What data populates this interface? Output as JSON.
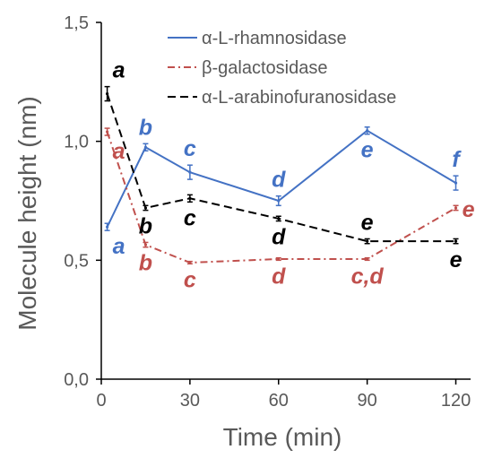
{
  "chart_data": {
    "type": "line",
    "xlabel": "Time (min)",
    "ylabel": "Molecule height (nm)",
    "xlim": [
      0,
      125
    ],
    "ylim": [
      0,
      1.5
    ],
    "xticks": [
      0,
      30,
      60,
      90,
      120
    ],
    "xtick_labels": [
      "0",
      "30",
      "60",
      "90",
      "120"
    ],
    "yticks": [
      0,
      0.5,
      1.0,
      1.5
    ],
    "ytick_labels": [
      "0,0",
      "0,5",
      "1,0",
      "1,5"
    ],
    "grid": false,
    "legend_position": "top-right",
    "series": [
      {
        "name": "α-L-rhamnosidase",
        "color": "#4472C4",
        "dash": "solid",
        "x": [
          2,
          15,
          30,
          60,
          90,
          120
        ],
        "y": [
          0.64,
          0.975,
          0.87,
          0.75,
          1.045,
          0.825
        ],
        "err": [
          0.015,
          0.015,
          0.03,
          0.02,
          0.015,
          0.03
        ],
        "letters": [
          "a",
          "b",
          "c",
          "d",
          "e",
          "f"
        ],
        "letter_side": [
          "below",
          "above",
          "above",
          "above",
          "below",
          "above"
        ]
      },
      {
        "name": "β-galactosidase",
        "color": "#C0504D",
        "dash": "dashdot",
        "x": [
          2,
          15,
          30,
          60,
          90,
          120
        ],
        "y": [
          1.04,
          0.565,
          0.49,
          0.505,
          0.505,
          0.72
        ],
        "err": [
          0.015,
          0.01,
          0.005,
          0.005,
          0.005,
          0.01
        ],
        "letters": [
          "a",
          "b",
          "c",
          "d",
          "c,d",
          "e"
        ],
        "letter_side": [
          "below",
          "below",
          "below",
          "below",
          "below",
          "right"
        ]
      },
      {
        "name": "α-L-arabinofuranosidase",
        "color": "#000000",
        "dash": "dashed",
        "x": [
          2,
          15,
          30,
          60,
          90,
          120
        ],
        "y": [
          1.2,
          0.72,
          0.76,
          0.675,
          0.58,
          0.58
        ],
        "err": [
          0.03,
          0.01,
          0.015,
          0.01,
          0.01,
          0.01
        ],
        "letters": [
          "a",
          "b",
          "c",
          "d",
          "e",
          "e"
        ],
        "letter_side": [
          "above",
          "below",
          "below",
          "below",
          "above",
          "below"
        ]
      }
    ]
  }
}
